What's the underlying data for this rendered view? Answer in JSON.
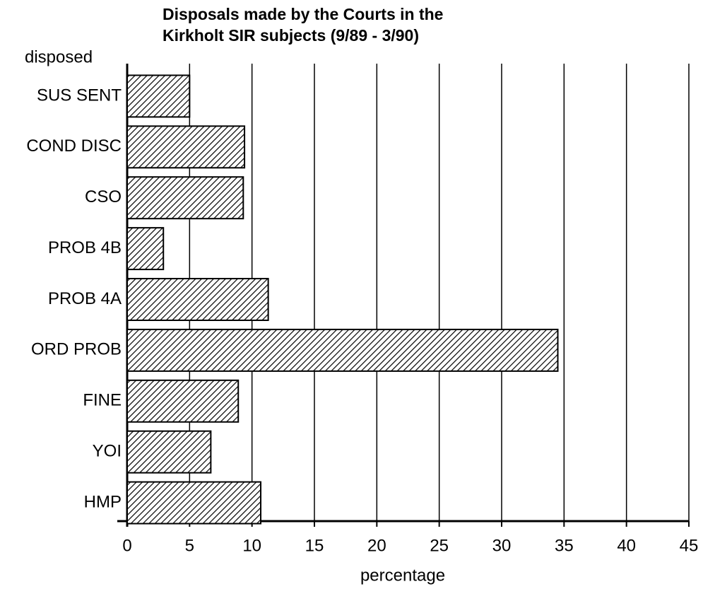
{
  "chart_data": {
    "type": "barh",
    "title": [
      "Disposals made by the Courts in the",
      "Kirkholt SIR subjects (9/89 - 3/90)"
    ],
    "ylabel": "disposed",
    "xlabel": "percentage",
    "categories": [
      "SUS SENT",
      "COND DISC",
      "CSO",
      "PROB 4B",
      "PROB 4A",
      "ORD PROB",
      "FINE",
      "YOI",
      "HMP"
    ],
    "values": [
      5,
      9.4,
      9.3,
      2.9,
      11.3,
      34.5,
      8.9,
      6.7,
      10.7
    ],
    "color": "#000000",
    "xlim": [
      0,
      45
    ],
    "xticks": [
      0,
      5,
      10,
      15,
      20,
      25,
      30,
      35,
      40,
      45
    ],
    "grid": true
  }
}
